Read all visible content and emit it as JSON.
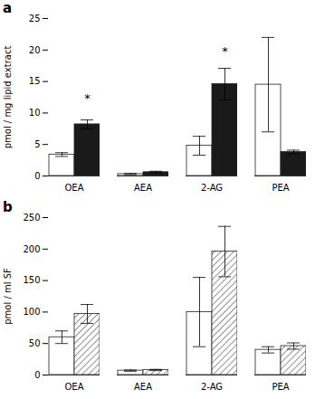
{
  "chart_data": [
    {
      "type": "bar",
      "title": "a",
      "ylabel": "pmol / mg lipid extract",
      "categories": [
        "OEA",
        "AEA",
        "2-AG",
        "PEA"
      ],
      "series": [
        {
          "color": "#ffffff",
          "values": [
            3.4,
            0.3,
            4.8,
            14.5
          ],
          "errors": [
            0.3,
            0.1,
            1.5,
            7.5
          ]
        },
        {
          "color": "#1a1a1a",
          "values": [
            8.2,
            0.6,
            14.6,
            3.8
          ],
          "errors": [
            0.7,
            0.15,
            2.5,
            0.3
          ],
          "annotations": [
            {
              "text": "*",
              "category": "OEA",
              "y": 13.0
            },
            {
              "text": "*",
              "category": "2-AG",
              "y": 20.5
            }
          ]
        }
      ],
      "ylim": [
        0,
        25
      ],
      "yticks": [
        0,
        5,
        10,
        15,
        20,
        25
      ],
      "grid": false
    },
    {
      "type": "bar",
      "title": "b",
      "ylabel": "pmol / ml SF",
      "categories": [
        "OEA",
        "AEA",
        "2-AG",
        "PEA"
      ],
      "series": [
        {
          "color": "#ffffff",
          "values": [
            60,
            7,
            100,
            40
          ],
          "errors": [
            10,
            1,
            55,
            5
          ]
        },
        {
          "color": "#ffffff",
          "values": [
            97,
            8,
            196,
            46
          ],
          "errors": [
            15,
            1,
            40,
            5
          ]
        }
      ],
      "ylim": [
        0,
        250
      ],
      "yticks": [
        0,
        50,
        100,
        150,
        200,
        250
      ],
      "grid": false
    }
  ]
}
